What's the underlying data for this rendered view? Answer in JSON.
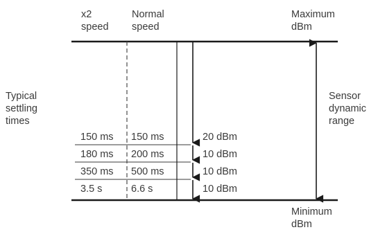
{
  "headers": {
    "x2_speed": [
      "x2",
      "speed"
    ],
    "normal_speed": [
      "Normal",
      "speed"
    ],
    "maximum": [
      "Maximum",
      "dBm"
    ],
    "minimum": [
      "Minimum",
      "dBm"
    ]
  },
  "left_label": [
    "Typical",
    "settling",
    "times"
  ],
  "right_label": [
    "Sensor",
    "dynamic",
    "range"
  ],
  "rows": [
    {
      "x2": "150 ms",
      "normal": "150 ms",
      "range": "20 dBm"
    },
    {
      "x2": "180 ms",
      "normal": "200 ms",
      "range": "10 dBm"
    },
    {
      "x2": "350 ms",
      "normal": "500 ms",
      "range": "10 dBm"
    },
    {
      "x2": "3.5 s",
      "normal": "6.6 s",
      "range": "10 dBm"
    }
  ],
  "colors": {
    "line": "#1a1a1a",
    "text": "#3a3a3a"
  }
}
